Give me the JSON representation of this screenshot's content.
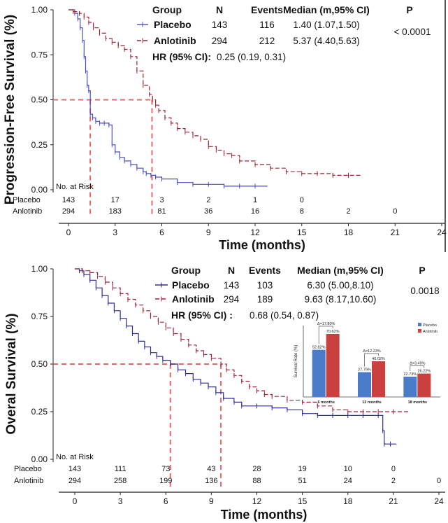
{
  "chart_data": [
    {
      "type": "line",
      "subtype": "kaplan-meier",
      "title": "",
      "xlabel": "Time (months)",
      "ylabel": "Progression-Free Survival (%)",
      "xlim": [
        0,
        24
      ],
      "ylim": [
        0,
        1
      ],
      "x_ticks": [
        "0",
        "3",
        "6",
        "9",
        "12",
        "15",
        "18",
        "21",
        "24"
      ],
      "y_ticks": [
        "0.00",
        "0.25",
        "0.50",
        "0.75",
        "1.00"
      ],
      "grid": false,
      "table_headers": {
        "group": "Group",
        "n": "N",
        "events": "Events",
        "median": "Median (m,95% CI)",
        "p": "P"
      },
      "p_value": "< 0.0001",
      "hr_label": "HR (95% CI):",
      "hr_value": "0.25 (0.19, 0.31)",
      "series": [
        {
          "name": "Placebo",
          "color": "#4a4fc4",
          "n": "143",
          "events": "116",
          "median": "1.40 (1.07,1.50)",
          "x": [
            0,
            0.4,
            0.6,
            0.75,
            0.9,
            1.0,
            1.1,
            1.2,
            1.3,
            1.4,
            1.55,
            1.75,
            2.0,
            2.3,
            2.6,
            2.8,
            3.0,
            3.3,
            3.6,
            4.0,
            4.4,
            4.8,
            5.0,
            5.3,
            5.6,
            6.0,
            7.0,
            8.0,
            9.0,
            10.0,
            11.0,
            12.0,
            12.8
          ],
          "y": [
            1.0,
            0.98,
            0.95,
            0.9,
            0.83,
            0.74,
            0.66,
            0.58,
            0.55,
            0.42,
            0.4,
            0.38,
            0.37,
            0.37,
            0.36,
            0.25,
            0.21,
            0.18,
            0.16,
            0.14,
            0.12,
            0.1,
            0.09,
            0.08,
            0.07,
            0.06,
            0.04,
            0.03,
            0.03,
            0.02,
            0.02,
            0.02,
            0.02
          ]
        },
        {
          "name": "Anlotinib",
          "color": "#9b2433",
          "n": "294",
          "events": "212",
          "median": "5.37 (4.40,5.63)",
          "x": [
            0,
            0.3,
            0.7,
            1.0,
            1.3,
            1.6,
            2.0,
            2.4,
            2.8,
            3.2,
            3.6,
            4.0,
            4.4,
            4.8,
            5.2,
            5.4,
            5.6,
            5.8,
            6.2,
            6.6,
            7.0,
            7.5,
            8.0,
            8.5,
            9.0,
            9.5,
            10.0,
            10.5,
            11.0,
            12.0,
            13.0,
            14.0,
            15.0,
            16.0,
            17.0,
            18.0,
            18.8
          ],
          "y": [
            1.0,
            0.99,
            0.98,
            0.96,
            0.93,
            0.9,
            0.87,
            0.84,
            0.82,
            0.8,
            0.78,
            0.74,
            0.66,
            0.58,
            0.53,
            0.5,
            0.47,
            0.44,
            0.4,
            0.37,
            0.34,
            0.32,
            0.3,
            0.28,
            0.24,
            0.22,
            0.2,
            0.19,
            0.16,
            0.14,
            0.12,
            0.1,
            0.09,
            0.09,
            0.08,
            0.08,
            0.08
          ]
        }
      ],
      "median_lines": [
        1.4,
        5.37
      ],
      "risk_table": {
        "title": "No. at Risk",
        "rows": [
          {
            "label": "Placebo",
            "x": [
              0,
              3,
              6,
              9,
              12,
              15
            ],
            "values": [
              "143",
              "17",
              "3",
              "2",
              "1",
              "0"
            ]
          },
          {
            "label": "Anlotinib",
            "x": [
              0,
              3,
              6,
              9,
              12,
              15,
              18,
              21
            ],
            "values": [
              "294",
              "183",
              "81",
              "36",
              "16",
              "8",
              "2",
              "0"
            ]
          }
        ]
      }
    },
    {
      "type": "line",
      "subtype": "kaplan-meier",
      "title": "",
      "xlabel": "Time (months)",
      "ylabel": "Overal Survival (%)",
      "xlim": [
        0,
        24
      ],
      "ylim": [
        0,
        1
      ],
      "x_ticks": [
        "0",
        "3",
        "6",
        "9",
        "12",
        "15",
        "18",
        "21",
        "24"
      ],
      "y_ticks": [
        "0.00",
        "0.25",
        "0.50",
        "0.75",
        "1.00"
      ],
      "grid": false,
      "table_headers": {
        "group": "Group",
        "n": "N",
        "events": "Events",
        "median": "Median (m,95% CI)",
        "p": "P"
      },
      "p_value": "0.0018",
      "hr_label": "HR (95% CI) :",
      "hr_value": "0.68 (0.54, 0.87)",
      "series": [
        {
          "name": "Placebo",
          "color": "#2e2f96",
          "n": "143",
          "events": "103",
          "median": "6.30 (5.00,8.10)",
          "x": [
            0,
            0.3,
            0.6,
            1.0,
            1.4,
            1.8,
            2.2,
            2.6,
            3.0,
            3.4,
            3.8,
            4.2,
            4.6,
            5.0,
            5.4,
            5.8,
            6.3,
            6.8,
            7.3,
            7.8,
            8.3,
            8.8,
            9.3,
            9.8,
            10.5,
            11.0,
            12.0,
            13.0,
            14.0,
            15.0,
            16.0,
            17.0,
            18.0,
            19.0,
            20.0,
            20.3,
            20.4,
            20.8,
            21.2
          ],
          "y": [
            1.0,
            0.99,
            0.97,
            0.94,
            0.9,
            0.86,
            0.82,
            0.78,
            0.74,
            0.7,
            0.66,
            0.62,
            0.59,
            0.56,
            0.54,
            0.52,
            0.5,
            0.47,
            0.45,
            0.42,
            0.4,
            0.38,
            0.35,
            0.32,
            0.3,
            0.28,
            0.28,
            0.27,
            0.26,
            0.24,
            0.23,
            0.23,
            0.23,
            0.23,
            0.23,
            0.15,
            0.08,
            0.08,
            0.08
          ]
        },
        {
          "name": "Anlotinib",
          "color": "#a3203a",
          "n": "294",
          "events": "189",
          "median": "9.63 (8.17,10.60)",
          "x": [
            0,
            0.5,
            1.0,
            1.5,
            2.0,
            2.5,
            3.0,
            3.5,
            4.0,
            4.5,
            5.0,
            5.5,
            6.0,
            6.5,
            7.0,
            7.5,
            8.0,
            8.5,
            9.0,
            9.63,
            10.0,
            10.5,
            11.0,
            11.5,
            12.0,
            12.5,
            13.0,
            14.0,
            15.0,
            16.0,
            17.0,
            18.0,
            19.0,
            20.0,
            21.0,
            22.0
          ],
          "y": [
            1.0,
            0.99,
            0.98,
            0.96,
            0.93,
            0.9,
            0.87,
            0.84,
            0.81,
            0.78,
            0.75,
            0.72,
            0.69,
            0.66,
            0.63,
            0.6,
            0.57,
            0.55,
            0.53,
            0.5,
            0.47,
            0.44,
            0.41,
            0.38,
            0.36,
            0.34,
            0.33,
            0.31,
            0.3,
            0.28,
            0.26,
            0.25,
            0.25,
            0.25,
            0.25,
            0.25
          ]
        }
      ],
      "median_lines": [
        6.3,
        9.63
      ],
      "risk_table": {
        "title": "No. at Risk",
        "rows": [
          {
            "label": "Placebo",
            "x": [
              0,
              3,
              6,
              9,
              12,
              15,
              18,
              21
            ],
            "values": [
              "143",
              "111",
              "73",
              "43",
              "28",
              "19",
              "10",
              "0"
            ]
          },
          {
            "label": "Anlotinib",
            "x": [
              0,
              3,
              6,
              9,
              12,
              15,
              18,
              21,
              24
            ],
            "values": [
              "294",
              "258",
              "199",
              "136",
              "88",
              "51",
              "24",
              "2",
              "0"
            ]
          }
        ]
      },
      "inset": {
        "type": "bar",
        "ylabel": "Survival Rate (%)",
        "legend": [
          "Placebo",
          "Anlotinib"
        ],
        "categories": [
          "6 months",
          "12 months",
          "18 months"
        ],
        "series": [
          {
            "name": "Placebo",
            "color": "#4a7cc9",
            "values": [
              52.82,
              27.79,
              22.73
            ],
            "labels": [
              "52.82%",
              "27.79%",
              "22.73%"
            ]
          },
          {
            "name": "Anlotinib",
            "color": "#c9403f",
            "values": [
              70.62,
              40.02,
              26.22
            ],
            "labels": [
              "70.62%",
              "40.02%",
              "26.22%"
            ]
          }
        ],
        "deltas": [
          "Δ=17.80%",
          "Δ=12.23%",
          "Δ=3.49%"
        ],
        "ylim": [
          0,
          80
        ]
      }
    }
  ]
}
